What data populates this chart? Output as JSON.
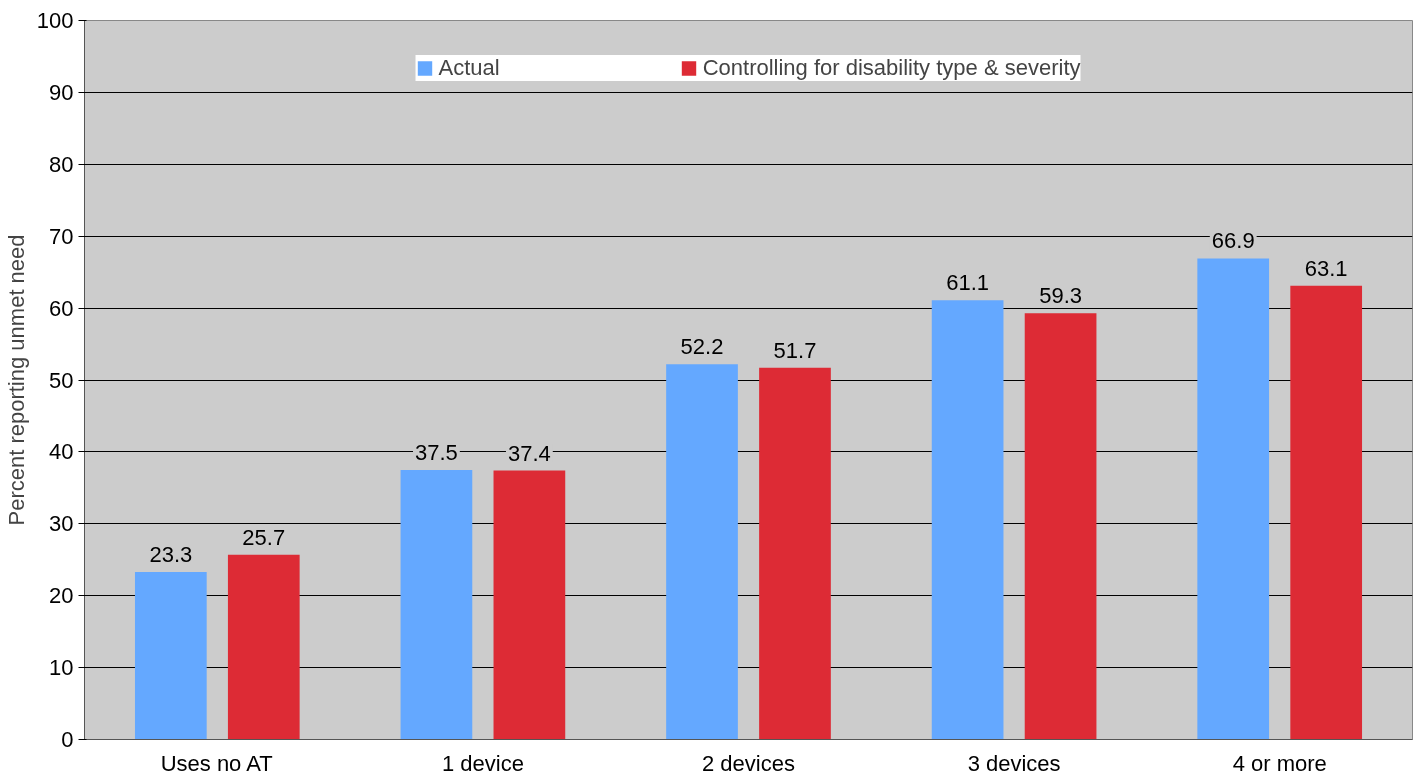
{
  "chart_data": {
    "type": "bar",
    "ylabel": "Percent reporting unmet need",
    "categories": [
      "Uses no AT",
      "1 device",
      "2 devices",
      "3 devices",
      "4 or more"
    ],
    "series": [
      {
        "name": "Actual",
        "color": "#64a8ff",
        "values": [
          23.3,
          37.5,
          52.2,
          61.1,
          66.9
        ]
      },
      {
        "name": "Controlling for disability type & severity",
        "color": "#dd2b35",
        "values": [
          25.7,
          37.4,
          51.7,
          59.3,
          63.1
        ]
      }
    ],
    "ylim": [
      0,
      100
    ],
    "yticks": [
      0,
      10,
      20,
      30,
      40,
      50,
      60,
      70,
      80,
      90,
      100
    ],
    "grid": "y",
    "legend": "top",
    "data_labels": true
  }
}
